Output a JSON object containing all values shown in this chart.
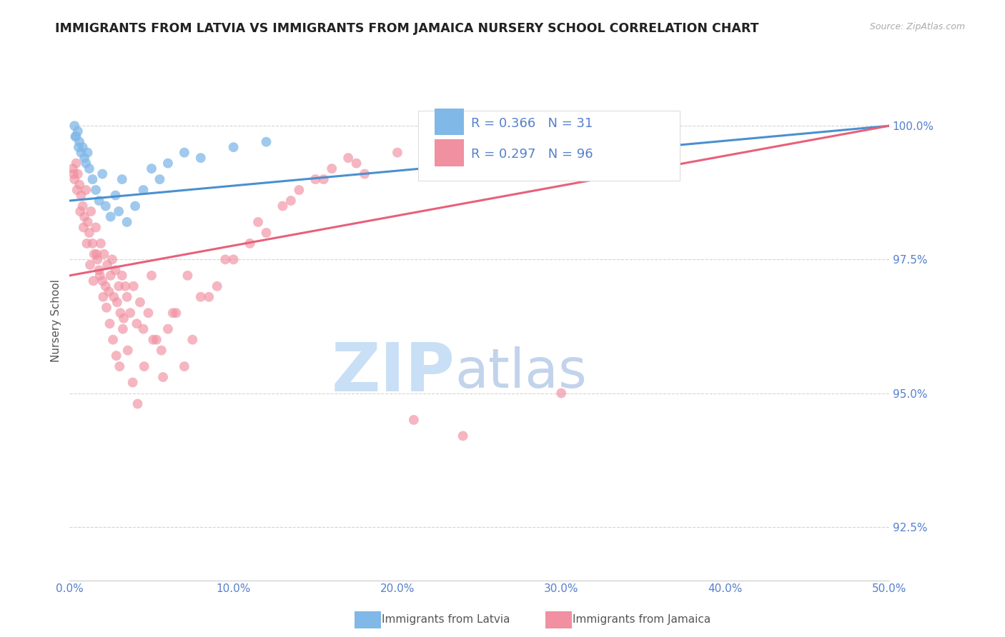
{
  "title": "IMMIGRANTS FROM LATVIA VS IMMIGRANTS FROM JAMAICA NURSERY SCHOOL CORRELATION CHART",
  "source": "Source: ZipAtlas.com",
  "ylabel": "Nursery School",
  "xlim": [
    0.0,
    50.0
  ],
  "ylim": [
    91.5,
    101.2
  ],
  "yticks": [
    92.5,
    95.0,
    97.5,
    100.0
  ],
  "xticks": [
    0.0,
    10.0,
    20.0,
    30.0,
    40.0,
    50.0
  ],
  "xtick_labels": [
    "0.0%",
    "10.0%",
    "20.0%",
    "30.0%",
    "40.0%",
    "50.0%"
  ],
  "ytick_labels": [
    "92.5%",
    "95.0%",
    "97.5%",
    "100.0%"
  ],
  "legend_entries": [
    {
      "label": "Immigrants from Latvia",
      "color": "#a8c8f0",
      "R": 0.366,
      "N": 31
    },
    {
      "label": "Immigrants from Jamaica",
      "color": "#f5a0b0",
      "R": 0.297,
      "N": 96
    }
  ],
  "latvia_color": "#80b8e8",
  "jamaica_color": "#f090a0",
  "latvia_line_color": "#4a90d0",
  "jamaica_line_color": "#e8607a",
  "watermark_zip_color": "#c8dff5",
  "watermark_atlas_color": "#b8cce8",
  "title_color": "#222222",
  "axis_color": "#5580cc",
  "grid_color": "#d0d0d0",
  "lat_trend_x0": 0.0,
  "lat_trend_y0": 98.6,
  "lat_trend_x1": 50.0,
  "lat_trend_y1": 100.0,
  "jam_trend_x0": 0.0,
  "jam_trend_y0": 97.2,
  "jam_trend_x1": 50.0,
  "jam_trend_y1": 100.0,
  "latvia_pts_x": [
    0.3,
    0.4,
    0.5,
    0.6,
    0.7,
    0.8,
    0.9,
    1.0,
    1.1,
    1.2,
    1.4,
    1.6,
    1.8,
    2.0,
    2.2,
    2.5,
    2.8,
    3.0,
    3.2,
    3.5,
    4.0,
    4.5,
    5.0,
    5.5,
    6.0,
    7.0,
    8.0,
    10.0,
    12.0,
    0.35,
    0.55
  ],
  "latvia_pts_y": [
    100.0,
    99.8,
    99.9,
    99.7,
    99.5,
    99.6,
    99.4,
    99.3,
    99.5,
    99.2,
    99.0,
    98.8,
    98.6,
    99.1,
    98.5,
    98.3,
    98.7,
    98.4,
    99.0,
    98.2,
    98.5,
    98.8,
    99.2,
    99.0,
    99.3,
    99.5,
    99.4,
    99.6,
    99.7,
    99.8,
    99.6
  ],
  "jamaica_pts_x": [
    0.2,
    0.3,
    0.4,
    0.5,
    0.6,
    0.7,
    0.8,
    0.9,
    1.0,
    1.1,
    1.2,
    1.3,
    1.4,
    1.5,
    1.6,
    1.7,
    1.8,
    1.9,
    2.0,
    2.1,
    2.2,
    2.3,
    2.4,
    2.5,
    2.6,
    2.7,
    2.8,
    2.9,
    3.0,
    3.1,
    3.2,
    3.3,
    3.4,
    3.5,
    3.7,
    3.9,
    4.1,
    4.3,
    4.5,
    4.8,
    5.0,
    5.3,
    5.6,
    6.0,
    6.5,
    7.0,
    7.5,
    8.0,
    9.0,
    10.0,
    11.0,
    12.0,
    13.0,
    14.0,
    15.0,
    16.0,
    17.0,
    18.0,
    20.0,
    22.0,
    25.0,
    28.0,
    32.0,
    0.25,
    0.45,
    0.65,
    0.85,
    1.05,
    1.25,
    1.45,
    1.65,
    1.85,
    2.05,
    2.25,
    2.45,
    2.65,
    2.85,
    3.05,
    3.25,
    3.55,
    3.85,
    4.15,
    4.55,
    5.1,
    5.7,
    6.3,
    7.2,
    8.5,
    9.5,
    11.5,
    13.5,
    15.5,
    17.5,
    21.0,
    24.0,
    30.0
  ],
  "jamaica_pts_y": [
    99.2,
    99.0,
    99.3,
    99.1,
    98.9,
    98.7,
    98.5,
    98.3,
    98.8,
    98.2,
    98.0,
    98.4,
    97.8,
    97.6,
    98.1,
    97.5,
    97.3,
    97.8,
    97.1,
    97.6,
    97.0,
    97.4,
    96.9,
    97.2,
    97.5,
    96.8,
    97.3,
    96.7,
    97.0,
    96.5,
    97.2,
    96.4,
    97.0,
    96.8,
    96.5,
    97.0,
    96.3,
    96.7,
    96.2,
    96.5,
    97.2,
    96.0,
    95.8,
    96.2,
    96.5,
    95.5,
    96.0,
    96.8,
    97.0,
    97.5,
    97.8,
    98.0,
    98.5,
    98.8,
    99.0,
    99.2,
    99.4,
    99.1,
    99.5,
    99.3,
    99.6,
    99.8,
    100.0,
    99.1,
    98.8,
    98.4,
    98.1,
    97.8,
    97.4,
    97.1,
    97.6,
    97.2,
    96.8,
    96.6,
    96.3,
    96.0,
    95.7,
    95.5,
    96.2,
    95.8,
    95.2,
    94.8,
    95.5,
    96.0,
    95.3,
    96.5,
    97.2,
    96.8,
    97.5,
    98.2,
    98.6,
    99.0,
    99.3,
    94.5,
    94.2,
    95.0
  ]
}
